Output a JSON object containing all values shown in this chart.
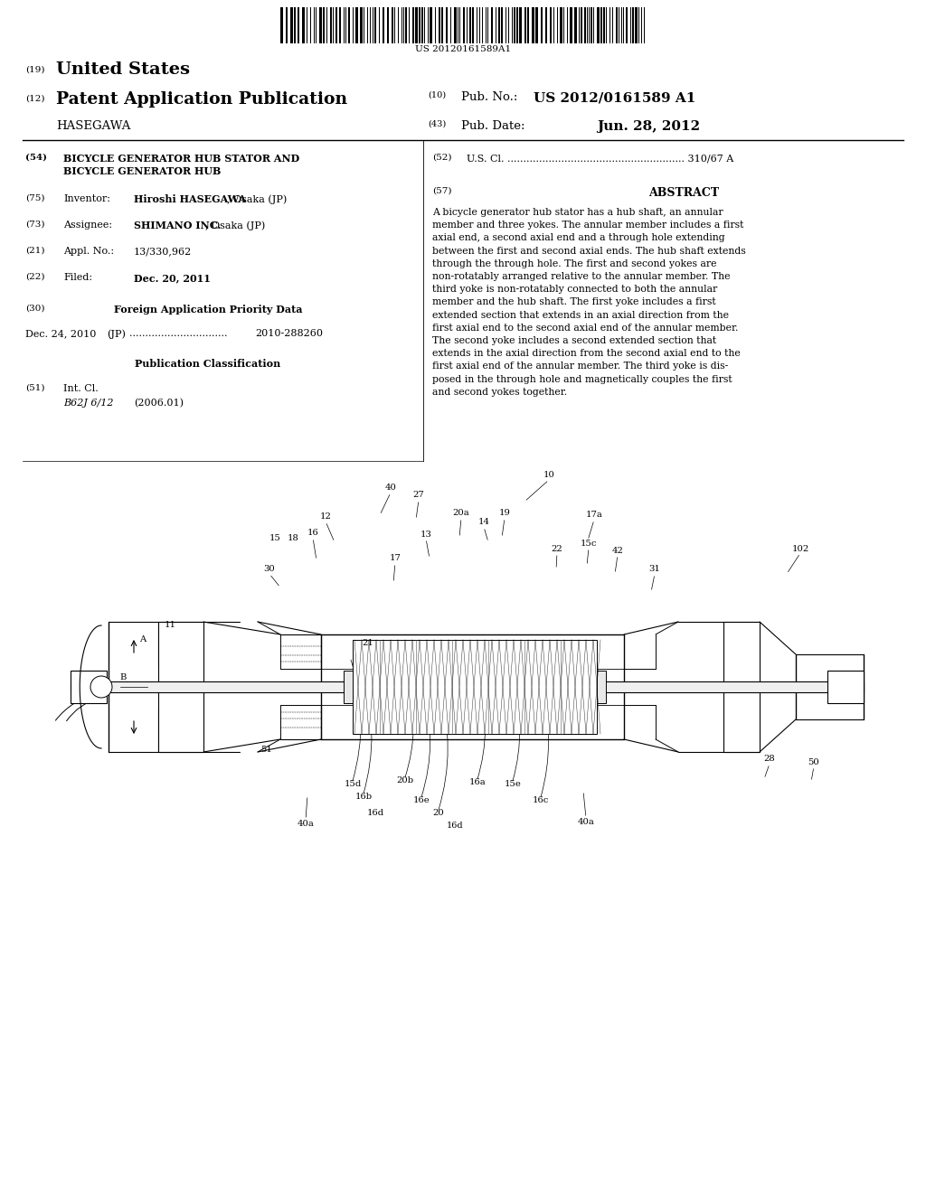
{
  "background_color": "#ffffff",
  "page_width": 10.24,
  "page_height": 13.2,
  "barcode_text": "US 20120161589A1",
  "header_19": "(19)",
  "header_country": "United States",
  "header_12": "(12)",
  "header_pub_type": "Patent Application Publication",
  "header_applicant": "HASEGAWA",
  "header_10": "(10)",
  "header_pub_no_label": "Pub. No.:",
  "header_pub_no": "US 2012/0161589 A1",
  "header_43": "(43)",
  "header_pub_date_label": "Pub. Date:",
  "header_pub_date": "Jun. 28, 2012",
  "f54_label": "(54)",
  "f54_line1": "BICYCLE GENERATOR HUB STATOR AND",
  "f54_line2": "BICYCLE GENERATOR HUB",
  "f52_label": "(52)",
  "f52_value": "U.S. Cl. ........................................................ 310/67 A",
  "f57_label": "(57)",
  "f57_title": "ABSTRACT",
  "abstract_lines": [
    "A bicycle generator hub stator has a hub shaft, an annular",
    "member and three yokes. The annular member includes a first",
    "axial end, a second axial end and a through hole extending",
    "between the first and second axial ends. The hub shaft extends",
    "through the through hole. The first and second yokes are",
    "non-rotatably arranged relative to the annular member. The",
    "third yoke is non-rotatably connected to both the annular",
    "member and the hub shaft. The first yoke includes a first",
    "extended section that extends in an axial direction from the",
    "first axial end to the second axial end of the annular member.",
    "The second yoke includes a second extended section that",
    "extends in the axial direction from the second axial end to the",
    "first axial end of the annular member. The third yoke is dis-",
    "posed in the through hole and magnetically couples the first",
    "and second yokes together."
  ],
  "f75_label": "(75)",
  "f75_key": "Inventor:",
  "f75_bold": "Hiroshi HASEGAWA",
  "f75_rest": ", Osaka (JP)",
  "f73_label": "(73)",
  "f73_key": "Assignee:",
  "f73_bold": "SHIMANO INC.",
  "f73_rest": ", Osaka (JP)",
  "f21_label": "(21)",
  "f21_key": "Appl. No.:",
  "f21_value": "13/330,962",
  "f22_label": "(22)",
  "f22_key": "Filed:",
  "f22_value": "Dec. 20, 2011",
  "f30_label": "(30)",
  "f30_title": "Foreign Application Priority Data",
  "f30_date": "Dec. 24, 2010",
  "f30_country": "(JP)",
  "f30_dots": "...............................",
  "f30_number": "2010-288260",
  "pub_class_title": "Publication Classification",
  "f51_label": "(51)",
  "f51_key": "Int. Cl.",
  "f51_sub": "B62J 6/12",
  "f51_subval": "(2006.01)"
}
